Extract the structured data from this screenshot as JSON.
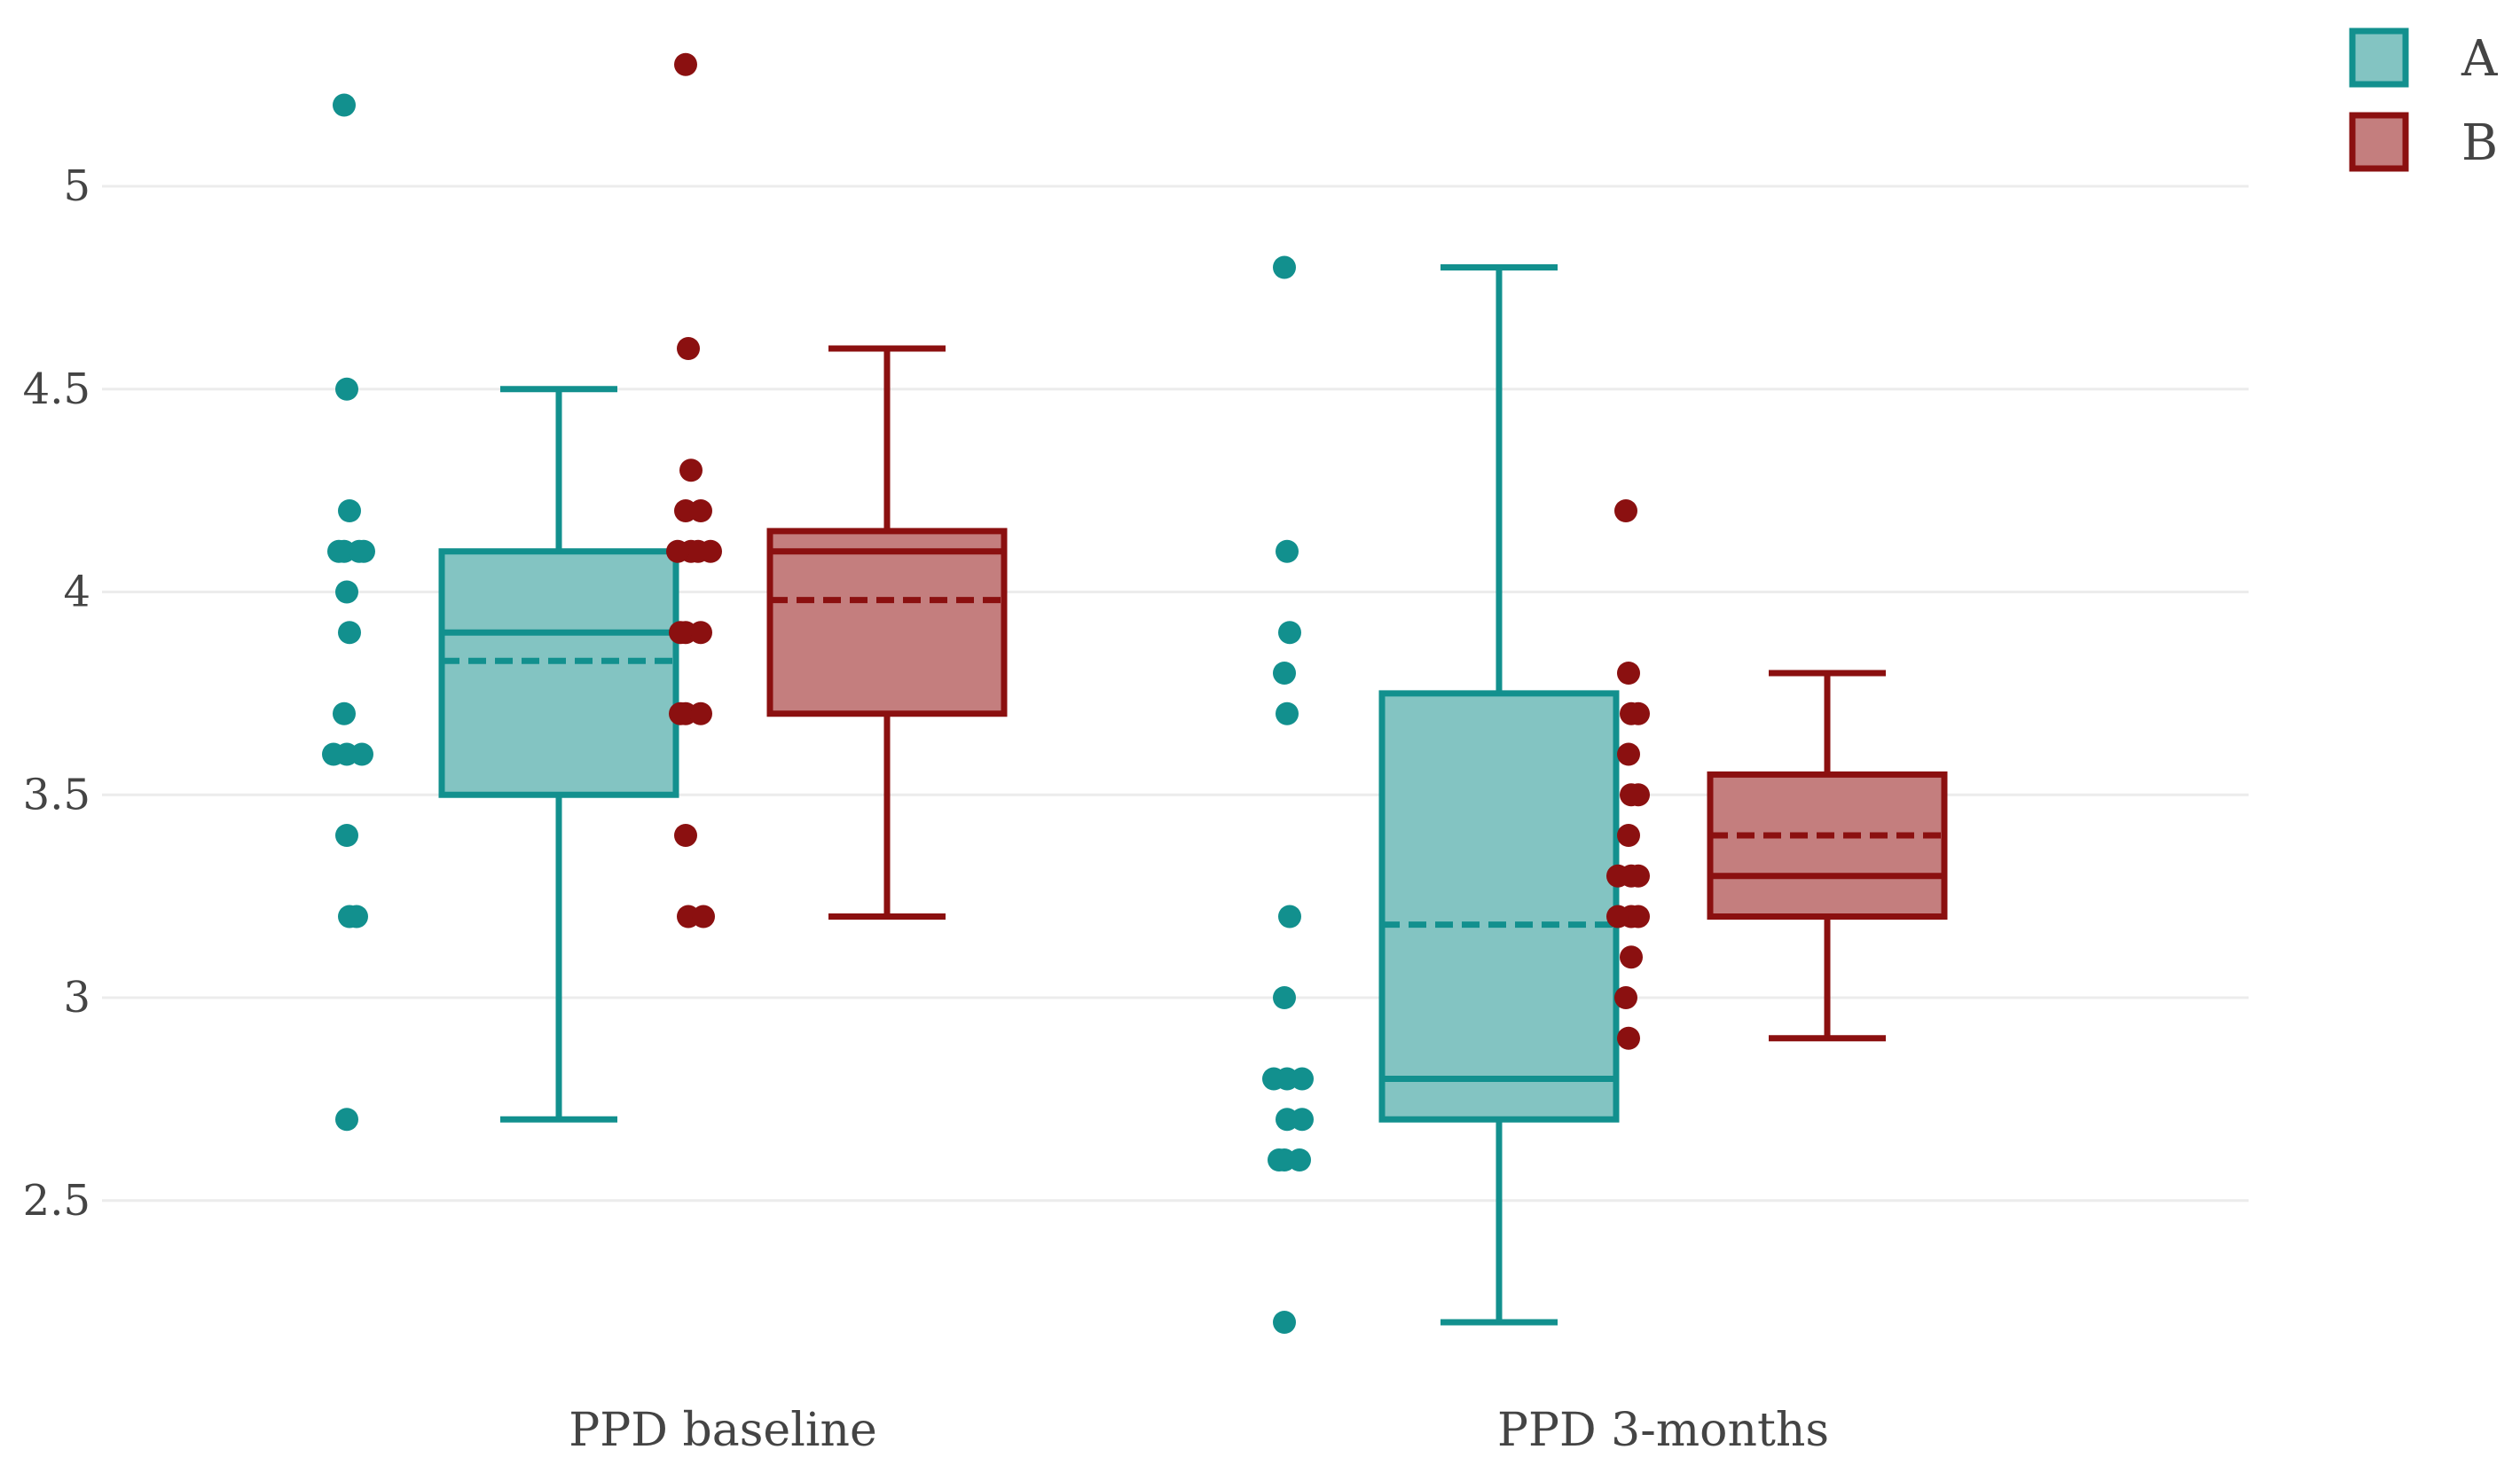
{
  "chart_data": {
    "type": "box",
    "title": "",
    "xlabel": "",
    "ylabel": "",
    "ylim": [
      2.15,
      5.4
    ],
    "y_ticks": [
      {
        "value": 2.5,
        "label": "2.5"
      },
      {
        "value": 3,
        "label": "3"
      },
      {
        "value": 3.5,
        "label": "3.5"
      },
      {
        "value": 4,
        "label": "4"
      },
      {
        "value": 4.5,
        "label": "4.5"
      },
      {
        "value": 5,
        "label": "5"
      }
    ],
    "grid": true,
    "legend_position": "top-right",
    "categories": [
      "PPD baseline",
      "PPD 3-months"
    ],
    "series": [
      {
        "name": "A",
        "legend_label": "A",
        "fill": "#83c4c2",
        "stroke": "#12908e",
        "boxes": [
          {
            "category": "PPD baseline",
            "min": 2.7,
            "q1": 3.5,
            "median": 3.9,
            "mean": 3.83,
            "q3": 4.1,
            "max": 4.5,
            "points": [
              5.2,
              4.5,
              4.2,
              4.1,
              4.1,
              4.1,
              4.1,
              4.0,
              3.9,
              3.7,
              3.6,
              3.6,
              3.6,
              3.4,
              3.2,
              3.2,
              2.7
            ]
          },
          {
            "category": "PPD 3-months",
            "min": 2.2,
            "q1": 2.7,
            "median": 2.8,
            "mean": 3.18,
            "q3": 3.75,
            "max": 4.8,
            "points": [
              4.8,
              4.1,
              3.9,
              3.8,
              3.7,
              3.2,
              3.0,
              2.8,
              2.8,
              2.8,
              2.7,
              2.7,
              2.6,
              2.6,
              2.6,
              2.2
            ]
          }
        ]
      },
      {
        "name": "B",
        "legend_label": "B",
        "fill": "#c47e7e",
        "stroke": "#8b1010",
        "boxes": [
          {
            "category": "PPD baseline",
            "min": 3.2,
            "q1": 3.7,
            "median": 4.1,
            "mean": 3.98,
            "q3": 4.15,
            "max": 4.6,
            "points": [
              5.3,
              4.6,
              4.3,
              4.2,
              4.2,
              4.1,
              4.1,
              4.1,
              4.1,
              3.9,
              3.9,
              3.9,
              3.7,
              3.7,
              3.7,
              3.4,
              3.2,
              3.2
            ]
          },
          {
            "category": "PPD 3-months",
            "min": 2.9,
            "q1": 3.2,
            "median": 3.3,
            "mean": 3.4,
            "q3": 3.55,
            "max": 3.8,
            "points": [
              4.2,
              3.8,
              3.7,
              3.7,
              3.6,
              3.5,
              3.5,
              3.4,
              3.3,
              3.3,
              3.3,
              3.2,
              3.2,
              3.2,
              3.1,
              3.0,
              2.9
            ]
          }
        ]
      }
    ]
  }
}
